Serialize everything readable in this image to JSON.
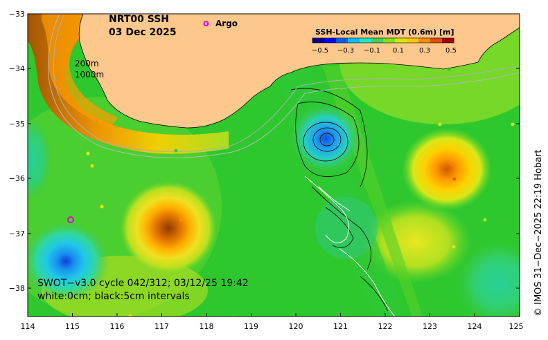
{
  "title": {
    "line1": "NRT00 SSH",
    "line2": "03 Dec 2025"
  },
  "legend": {
    "argo_label": "Argo",
    "argo_marker": "o",
    "argo_color": "#e000e0"
  },
  "isobaths": {
    "label_200": "200m",
    "label_1000": "1000m"
  },
  "colorbar": {
    "title": "SSH-Local Mean MDT (0.6m) [m]",
    "ticks": [
      "−0.5",
      "−0.3",
      "−0.1",
      "0.1",
      "0.3",
      "0.5"
    ],
    "colors": [
      "#00008f",
      "#0000ff",
      "#0060ff",
      "#00bfff",
      "#20e8c0",
      "#40d060",
      "#80e020",
      "#d8e800",
      "#ffc800",
      "#ff8c00",
      "#e05000",
      "#a00000"
    ]
  },
  "swot": {
    "line1": "SWOT−v3.0 cycle 042/312; 03/12/25 19:42",
    "line2": "white:0cm; black:5cm intervals"
  },
  "credit": "© IMOS 31−Dec−2025 22:19 Hobart",
  "axes": {
    "x_ticks": [
      "114",
      "115",
      "116",
      "117",
      "118",
      "119",
      "120",
      "121",
      "122",
      "123",
      "124",
      "125"
    ],
    "y_ticks": [
      "−33",
      "−34",
      "−35",
      "−36",
      "−37",
      "−38"
    ],
    "lon_range": [
      114,
      125
    ],
    "lat_range": [
      -38.5,
      -33
    ]
  },
  "colors": {
    "land": "#fcc88c",
    "ocean_base": "#28c828"
  }
}
